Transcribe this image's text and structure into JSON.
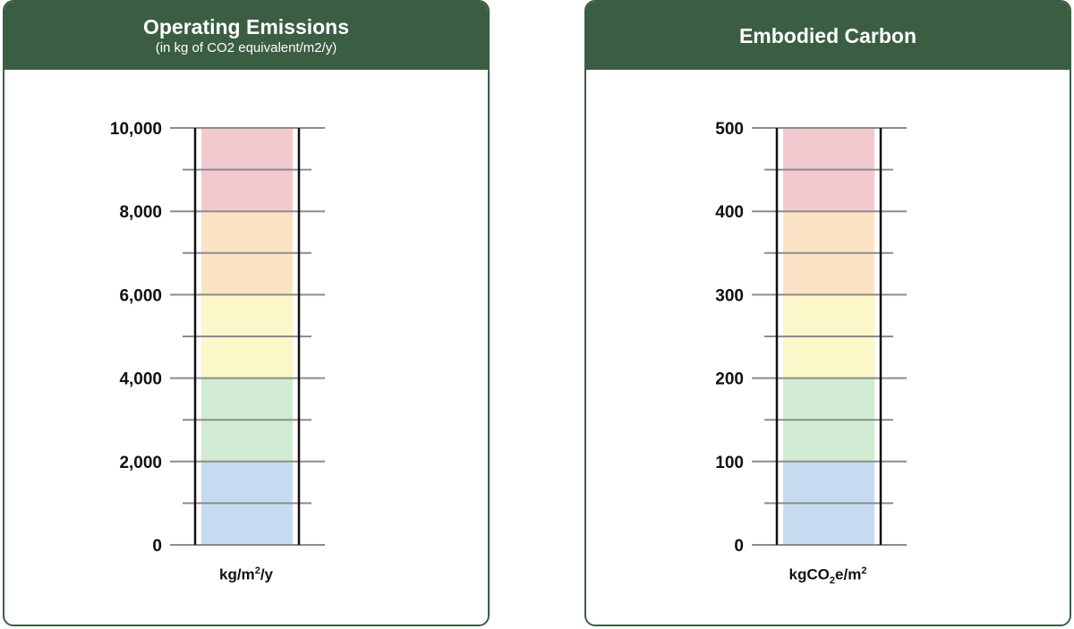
{
  "panels": [
    {
      "title": "Operating Emissions",
      "subtitle": "(in kg of CO2 equivalent/m2/y)",
      "unit": {
        "base": "kg/m",
        "sup": "2",
        "tail": "/y"
      }
    },
    {
      "title": "Embodied Carbon",
      "subtitle": "",
      "unit": {
        "base": "kgCO",
        "sub": "2",
        "tail": "e/m",
        "sup": "2"
      }
    }
  ],
  "colors": {
    "header": "#3b5e43",
    "bands": [
      "#c6dbef",
      "#d0ebd2",
      "#fbf7c8",
      "#fce3c6",
      "#f3c9d0"
    ],
    "grid": "#8c8c8c",
    "rail": "#111111"
  },
  "chart_data": [
    {
      "type": "bar",
      "ylim": [
        0,
        10000
      ],
      "major_ticks": [
        "0",
        "2,000",
        "4,000",
        "6,000",
        "8,000",
        "10,000"
      ],
      "major_values": [
        0,
        2000,
        4000,
        6000,
        8000,
        10000
      ],
      "minor_values": [
        1000,
        3000,
        5000,
        7000,
        9000
      ],
      "bands": [
        [
          0,
          2000
        ],
        [
          2000,
          4000
        ],
        [
          4000,
          6000
        ],
        [
          6000,
          8000
        ],
        [
          8000,
          10000
        ]
      ]
    },
    {
      "type": "bar",
      "ylim": [
        0,
        500
      ],
      "major_ticks": [
        "0",
        "100",
        "200",
        "300",
        "400",
        "500"
      ],
      "major_values": [
        0,
        100,
        200,
        300,
        400,
        500
      ],
      "minor_values": [
        50,
        150,
        250,
        350,
        450
      ],
      "bands": [
        [
          0,
          100
        ],
        [
          100,
          200
        ],
        [
          200,
          300
        ],
        [
          300,
          400
        ],
        [
          400,
          500
        ]
      ]
    }
  ]
}
